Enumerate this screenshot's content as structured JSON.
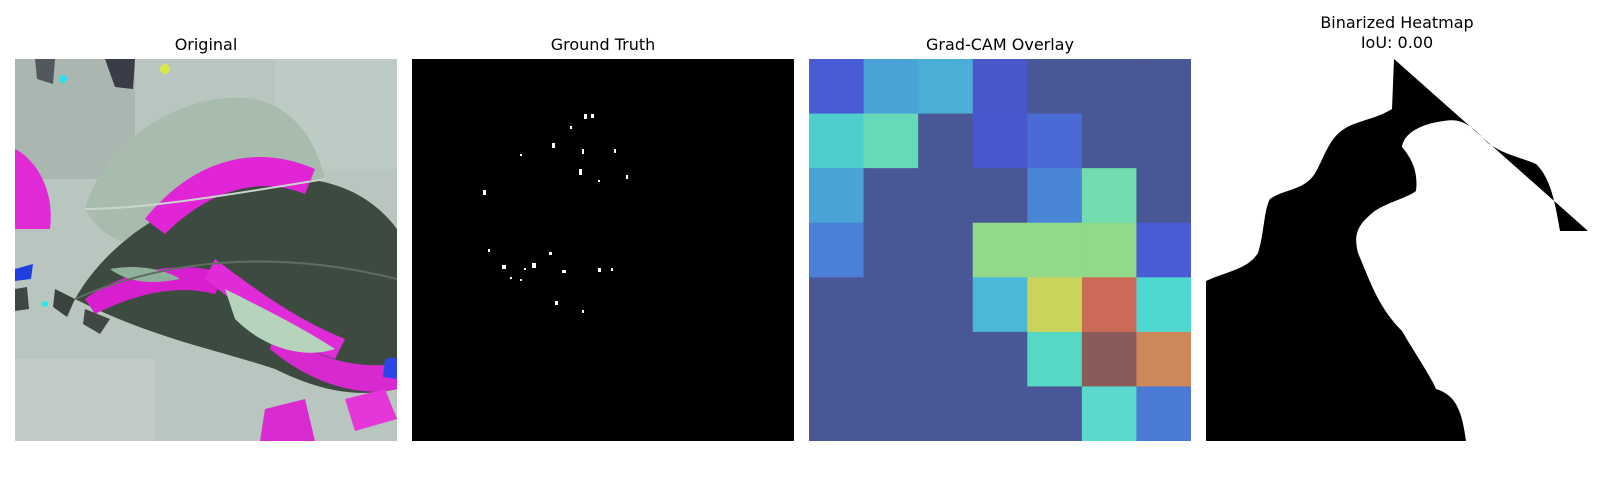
{
  "panels": {
    "original": {
      "title": "Original"
    },
    "ground_truth": {
      "title": "Ground Truth"
    },
    "gradcam": {
      "title": "Grad-CAM Overlay",
      "grid_colors": [
        [
          "#4a5bd6",
          "#4aa3d6",
          "#4aaed6",
          "#4a57c9",
          "#4a5796",
          "#4a5796",
          "#4a5796"
        ],
        [
          "#4ecfcd",
          "#66dab6",
          "#4a5796",
          "#4a57cc",
          "#4a6ad6",
          "#4a5796",
          "#4a5796"
        ],
        [
          "#4aa3d6",
          "#4a5796",
          "#4a5796",
          "#4a5796",
          "#4a86d6",
          "#72dbaf",
          "#4a5796"
        ],
        [
          "#4a80d8",
          "#4a5796",
          "#4a5796",
          "#92d98a",
          "#92d98a",
          "#92d98a",
          "#4a5bd6"
        ],
        [
          "#4a5796",
          "#4a5796",
          "#4a5796",
          "#4ab9d6",
          "#cbd45a",
          "#cc6a58",
          "#4ed8d2"
        ],
        [
          "#4a5796",
          "#4a5796",
          "#4a5796",
          "#4a5796",
          "#55d9c4",
          "#8b5a5a",
          "#cc8858"
        ],
        [
          "#4a5796",
          "#4a5796",
          "#4a5796",
          "#4a5796",
          "#4a5796",
          "#5ad9cc",
          "#4a7ad6"
        ]
      ]
    },
    "binarized": {
      "title_line1": "Binarized Heatmap",
      "title_line2": "IoU: 0.00"
    }
  }
}
